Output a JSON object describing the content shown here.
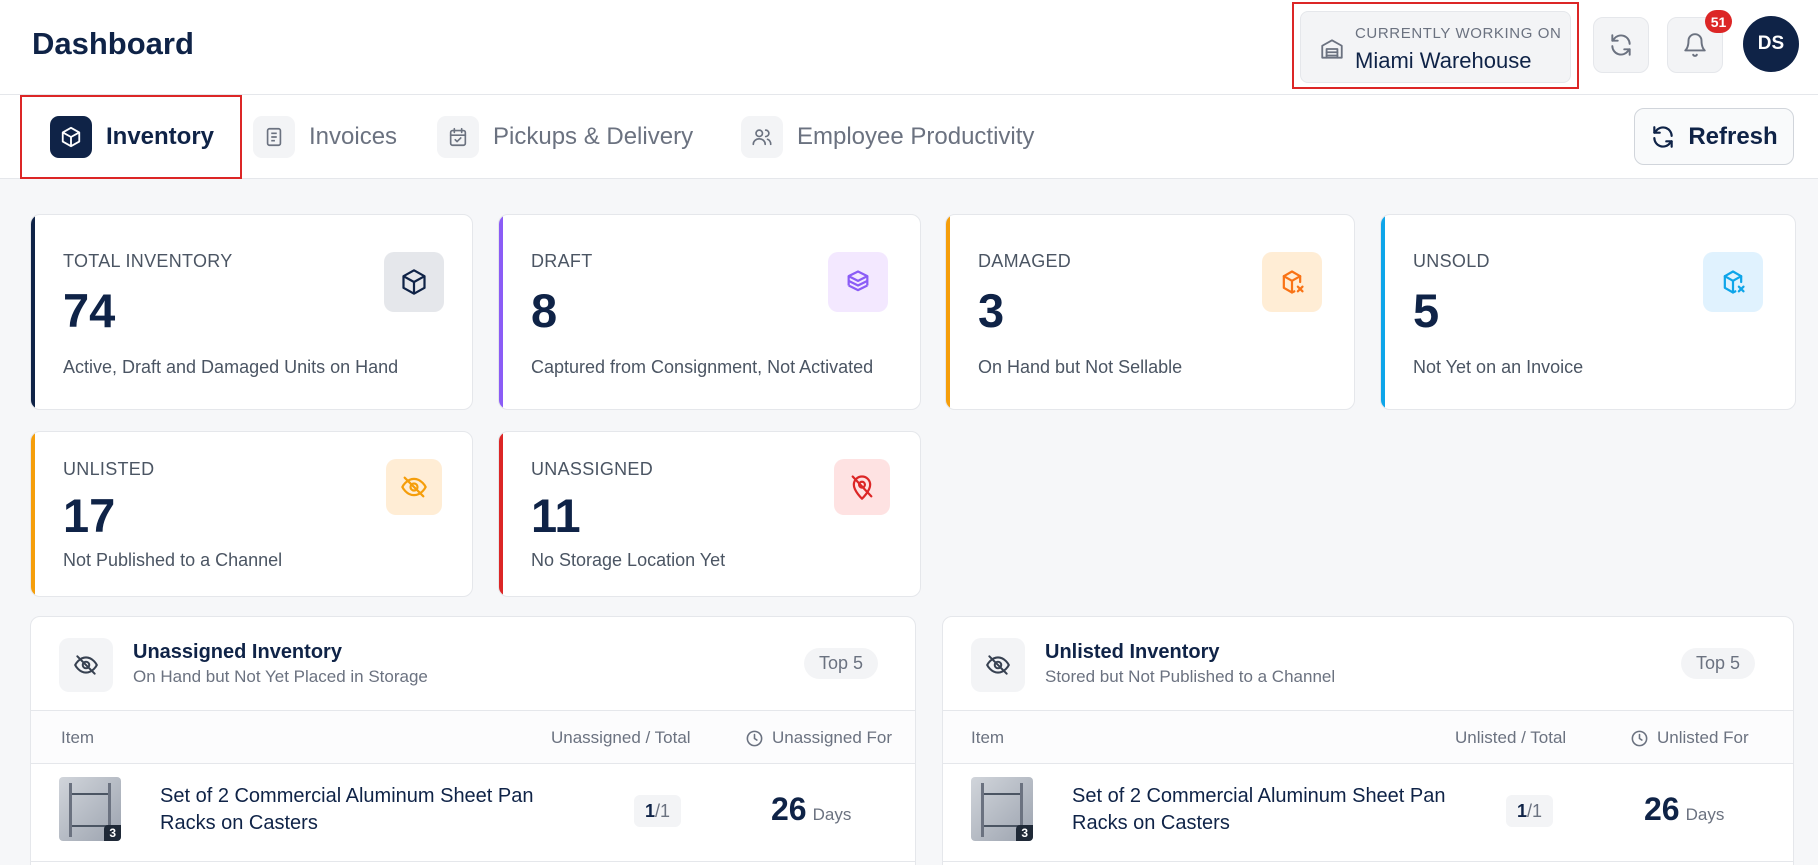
{
  "header": {
    "title": "Dashboard",
    "working_on_label": "CURRENTLY WORKING ON",
    "working_on_value": "Miami Warehouse",
    "notification_count": "51",
    "avatar_initials": "DS"
  },
  "tabs": [
    {
      "label": "Inventory",
      "active": true
    },
    {
      "label": "Invoices",
      "active": false
    },
    {
      "label": "Pickups & Delivery",
      "active": false
    },
    {
      "label": "Employee Productivity",
      "active": false
    }
  ],
  "refresh_label": "Refresh",
  "stats": [
    {
      "label": "TOTAL INVENTORY",
      "value": "74",
      "desc": "Active, Draft and Damaged Units on Hand",
      "accent": "#0f2347",
      "icon": "box-icon"
    },
    {
      "label": "DRAFT",
      "value": "8",
      "desc": "Captured from Consignment, Not Activated",
      "accent": "#8b5cf6",
      "icon": "package-icon"
    },
    {
      "label": "DAMAGED",
      "value": "3",
      "desc": "On Hand but Not Sellable",
      "accent": "#f59e0b",
      "icon": "box-x-icon"
    },
    {
      "label": "UNSOLD",
      "value": "5",
      "desc": "Not Yet on an Invoice",
      "accent": "#0ea5e9",
      "icon": "box-x-icon"
    },
    {
      "label": "UNLISTED",
      "value": "17",
      "desc": "Not Published to a Channel",
      "accent": "#f59e0b",
      "icon": "eye-off-icon"
    },
    {
      "label": "UNASSIGNED",
      "value": "11",
      "desc": "No Storage Location Yet",
      "accent": "#dc2626",
      "icon": "location-off-icon"
    }
  ],
  "panels": [
    {
      "title": "Unassigned Inventory",
      "subtitle": "On Hand but Not Yet Placed in Storage",
      "badge": "Top 5",
      "columns": {
        "item": "Item",
        "ratio": "Unassigned / Total",
        "duration": "Unassigned For"
      },
      "rows": [
        {
          "name": "Set of 2 Commercial Aluminum Sheet Pan Racks on Casters",
          "photo_count": "3",
          "count": "1",
          "total": "/1",
          "days": "26",
          "days_unit": "Days"
        }
      ]
    },
    {
      "title": "Unlisted Inventory",
      "subtitle": "Stored but Not Published to a Channel",
      "badge": "Top 5",
      "columns": {
        "item": "Item",
        "ratio": "Unlisted / Total",
        "duration": "Unlisted For"
      },
      "rows": [
        {
          "name": "Set of 2 Commercial Aluminum Sheet Pan Racks on Casters",
          "photo_count": "3",
          "count": "1",
          "total": "/1",
          "days": "26",
          "days_unit": "Days"
        }
      ]
    }
  ]
}
